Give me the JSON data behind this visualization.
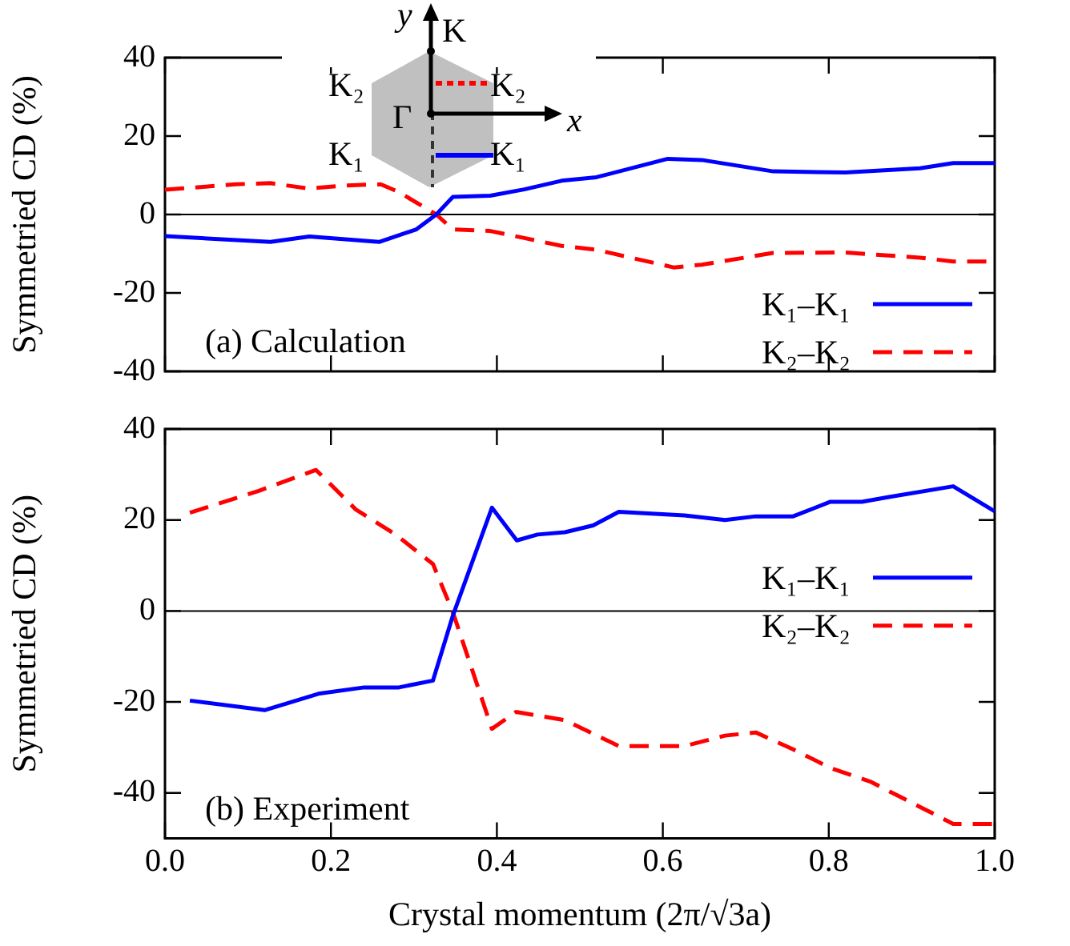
{
  "chart_data": [
    {
      "type": "line",
      "ylabel": "Symmetried CD (%)",
      "xlim": [
        0,
        1
      ],
      "xticks": [
        0,
        0.2,
        0.4,
        0.6,
        0.8,
        1
      ],
      "ylim": [
        -40,
        40
      ],
      "yticks": [
        -40,
        -20,
        0,
        20,
        40
      ],
      "tick_labels": "y",
      "legend": "bottom right",
      "grid": false,
      "ref_lines": [
        {
          "axis": "y",
          "value": 0,
          "color": "#000000"
        }
      ],
      "annotations": [
        "(a) Calculation",
        "y",
        "K",
        "K₂",
        "K₂",
        "Γ",
        "x",
        "K₁",
        "K₁"
      ],
      "series": [
        {
          "name": "K₁–K₁",
          "color": "#0000ff",
          "line_style": "solid",
          "x": [
            0,
            0.127,
            0.174,
            0.258,
            0.303,
            0.327,
            0.347,
            0.392,
            0.433,
            0.478,
            0.52,
            0.606,
            0.647,
            0.733,
            0.82,
            0.91,
            0.95,
            1.0
          ],
          "values": [
            -5.5,
            -7,
            -5.6,
            -7,
            -3.8,
            0,
            4.5,
            4.8,
            6.4,
            8.6,
            9.5,
            14.2,
            13.9,
            11,
            10.7,
            11.8,
            13.1,
            13.1
          ]
        },
        {
          "name": "K₂–K₂",
          "color": "#ff0000",
          "line_style": "dashed",
          "x": [
            0,
            0.085,
            0.127,
            0.174,
            0.216,
            0.26,
            0.282,
            0.327,
            0.347,
            0.392,
            0.433,
            0.478,
            0.52,
            0.613,
            0.647,
            0.733,
            0.82,
            0.91,
            0.95,
            1.0
          ],
          "values": [
            6.3,
            7.7,
            8,
            6.6,
            7.4,
            7.7,
            5.7,
            0,
            -3.8,
            -4.2,
            -6,
            -8,
            -9,
            -13.5,
            -12.8,
            -9.8,
            -9.7,
            -11,
            -12,
            -12
          ]
        }
      ]
    },
    {
      "type": "line",
      "xlabel": "Crystal momentum (2π/√3a)",
      "ylabel": "Symmetried CD (%)",
      "xlim": [
        0,
        1
      ],
      "xticks": [
        {
          "value": 0,
          "label": "0.0"
        },
        {
          "value": 0.2,
          "label": "0.2"
        },
        {
          "value": 0.4,
          "label": "0.4"
        },
        {
          "value": 0.6,
          "label": "0.6"
        },
        {
          "value": 0.8,
          "label": "0.8"
        },
        {
          "value": 1,
          "label": "1.0"
        }
      ],
      "ylim": [
        -50,
        40
      ],
      "yticks": [
        -40,
        -20,
        0,
        20,
        40
      ],
      "legend": "right",
      "grid": false,
      "ref_lines": [
        {
          "axis": "y",
          "value": 0,
          "color": "#000000"
        }
      ],
      "annotations": [
        "(b) Experiment"
      ],
      "series": [
        {
          "name": "K₁–K₁",
          "color": "#0000ff",
          "line_style": "solid",
          "x": [
            0.03,
            0.12,
            0.185,
            0.24,
            0.282,
            0.323,
            0.347,
            0.394,
            0.424,
            0.449,
            0.482,
            0.516,
            0.547,
            0.626,
            0.675,
            0.712,
            0.757,
            0.802,
            0.84,
            0.871,
            0.95,
            1.0
          ],
          "values": [
            -19.7,
            -21.8,
            -18.2,
            -16.8,
            -16.8,
            -15.3,
            -1,
            22.7,
            15.5,
            16.8,
            17.3,
            18.8,
            21.8,
            21,
            20,
            20.8,
            20.8,
            24,
            24,
            25,
            27.4,
            21.9
          ]
        },
        {
          "name": "K₂–K₂",
          "color": "#ff0000",
          "line_style": "dashed",
          "x": [
            0.03,
            0.113,
            0.182,
            0.23,
            0.278,
            0.323,
            0.347,
            0.394,
            0.423,
            0.482,
            0.547,
            0.626,
            0.675,
            0.712,
            0.757,
            0.802,
            0.85,
            0.95,
            1.0
          ],
          "values": [
            21.6,
            26.4,
            31,
            22.3,
            16.8,
            10.3,
            -0.3,
            -25.9,
            -22.2,
            -24,
            -29.7,
            -29.7,
            -27.4,
            -26.7,
            -30.4,
            -34.5,
            -37.5,
            -46.8,
            -46.8
          ]
        }
      ]
    }
  ]
}
